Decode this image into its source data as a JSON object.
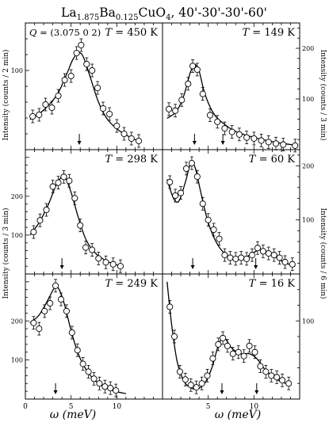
{
  "figure": {
    "title_parts": {
      "base": "La",
      "sub1": "1.875",
      "mid": "Ba",
      "sub2": "0.125",
      "tail": "CuO",
      "sub3": "4",
      "rest": ", 40'-30'-30'-60'"
    },
    "q_label": "Q",
    "q_value": " = (3.075 0 2)",
    "x_axis_label": "ω (meV)",
    "left_ylabel_top": "Intensity (counts / 2 min)",
    "left_ylabel_bottom": "Intensity (counts / 3 min)",
    "right_ylabel_top": "Intensity (counts / 3 min)",
    "right_ylabel_bottom": "Intensity (counts / 6 min)"
  },
  "chart_data": [
    {
      "type": "scatter",
      "panel": "left-1",
      "label_T": "T",
      "label_value": " = 450 K",
      "xlim": [
        0,
        15
      ],
      "ylim": [
        0,
        160
      ],
      "yticks": [
        0,
        100
      ],
      "xticks": [
        0,
        5,
        10
      ],
      "x": [
        0.8,
        1.5,
        2.2,
        2.9,
        3.6,
        4.3,
        5.0,
        5.6,
        6.1,
        6.7,
        7.3,
        7.9,
        8.5,
        9.2,
        10.0,
        10.8,
        11.6,
        12.4
      ],
      "y": [
        42,
        44,
        57,
        53,
        68,
        88,
        93,
        122,
        132,
        108,
        100,
        78,
        52,
        45,
        30,
        20,
        14,
        11
      ],
      "fit_x": [
        0.5,
        2,
        3.5,
        4.5,
        5.2,
        5.8,
        6.3,
        7,
        8,
        9,
        10.5,
        12.5
      ],
      "fit_y": [
        38,
        50,
        70,
        95,
        114,
        122,
        118,
        95,
        60,
        38,
        22,
        10
      ],
      "arrows": [
        5.9
      ]
    },
    {
      "type": "scatter",
      "panel": "right-1",
      "label_T": "T",
      "label_value": " = 149 K",
      "xlim": [
        0,
        15
      ],
      "ylim": [
        0,
        250
      ],
      "yticks": [
        0,
        100,
        200
      ],
      "xticks": [
        0,
        5,
        10
      ],
      "x": [
        0.7,
        1.4,
        2.1,
        2.8,
        3.3,
        3.8,
        4.4,
        5.2,
        6.0,
        6.8,
        7.6,
        8.4,
        9.2,
        10.0,
        10.8,
        11.6,
        12.4,
        13.2,
        14.5
      ],
      "y": [
        80,
        77,
        98,
        130,
        165,
        158,
        110,
        68,
        55,
        42,
        35,
        30,
        24,
        22,
        18,
        15,
        12,
        10,
        8
      ],
      "fit_x": [
        0.5,
        1.5,
        2.3,
        3.0,
        3.5,
        4.0,
        4.6,
        5.5,
        6.5,
        8,
        10,
        12.5,
        14.5
      ],
      "fit_y": [
        62,
        75,
        105,
        150,
        168,
        155,
        112,
        74,
        54,
        36,
        24,
        14,
        9
      ],
      "arrows": [
        3.5,
        6.6
      ]
    },
    {
      "type": "scatter",
      "panel": "left-2",
      "label_T": "T",
      "label_value": " = 298 K",
      "xlim": [
        0,
        15
      ],
      "ylim": [
        0,
        320
      ],
      "yticks": [
        0,
        100,
        200
      ],
      "xticks": [
        0,
        5,
        10
      ],
      "x": [
        0.9,
        1.6,
        2.3,
        3.0,
        3.6,
        4.2,
        4.8,
        5.4,
        6.0,
        6.6,
        7.3,
        8.0,
        8.8,
        9.6,
        10.4
      ],
      "y": [
        108,
        138,
        165,
        225,
        235,
        250,
        240,
        195,
        125,
        68,
        62,
        40,
        30,
        25,
        20
      ],
      "fit_x": [
        0.5,
        1.5,
        2.5,
        3.3,
        3.9,
        4.4,
        5.0,
        5.8,
        6.6,
        7.6,
        9,
        10.5
      ],
      "fit_y": [
        100,
        132,
        178,
        225,
        248,
        245,
        210,
        145,
        90,
        55,
        32,
        20
      ],
      "arrows": [
        4.0
      ]
    },
    {
      "type": "scatter",
      "panel": "right-2",
      "label_T": "T",
      "label_value": " = 60 K",
      "xlim": [
        0,
        15
      ],
      "ylim": [
        0,
        230
      ],
      "yticks": [
        0,
        100,
        200
      ],
      "xticks": [
        0,
        5,
        10
      ],
      "x": [
        0.8,
        1.4,
        2.0,
        2.6,
        3.2,
        3.8,
        4.4,
        5.0,
        5.6,
        6.2,
        6.8,
        7.4,
        8.0,
        8.6,
        9.2,
        9.8,
        10.4,
        11.0,
        11.6,
        12.2,
        12.8,
        13.4,
        14.2
      ],
      "y": [
        170,
        145,
        150,
        195,
        205,
        180,
        130,
        100,
        82,
        65,
        35,
        30,
        28,
        30,
        28,
        35,
        48,
        42,
        38,
        35,
        30,
        22,
        18
      ],
      "fit_x": [
        0.5,
        1.2,
        1.8,
        2.5,
        3.1,
        3.6,
        4.2,
        5.0,
        6.0,
        7.0,
        8.0,
        9.0,
        10.0,
        10.8,
        11.8,
        13,
        14.5
      ],
      "fit_y": [
        175,
        140,
        135,
        170,
        205,
        195,
        150,
        95,
        55,
        35,
        28,
        30,
        40,
        45,
        38,
        24,
        14
      ],
      "arrows": [
        3.3,
        10.2
      ]
    },
    {
      "type": "scatter",
      "panel": "left-3",
      "label_T": "T",
      "label_value": " = 249 K",
      "xlim": [
        0,
        15
      ],
      "ylim": [
        0,
        320
      ],
      "yticks": [
        0,
        100,
        200
      ],
      "xticks": [
        0,
        5,
        10
      ],
      "x": [
        0.9,
        1.5,
        2.1,
        2.7,
        3.3,
        3.9,
        4.5,
        5.1,
        5.7,
        6.3,
        6.9,
        7.5,
        8.1,
        8.7,
        9.3,
        9.9
      ],
      "y": [
        195,
        180,
        225,
        245,
        290,
        255,
        225,
        170,
        125,
        90,
        70,
        52,
        40,
        32,
        28,
        22
      ],
      "fit_x": [
        0.5,
        1.5,
        2.5,
        3.2,
        3.7,
        4.3,
        5.0,
        5.8,
        6.8,
        8,
        9.5,
        11
      ],
      "fit_y": [
        195,
        215,
        255,
        285,
        280,
        240,
        175,
        115,
        70,
        40,
        22,
        14
      ],
      "arrows": [
        3.3
      ]
    },
    {
      "type": "scatter",
      "panel": "right-3",
      "label_T": "T",
      "label_value": " = 16 K",
      "xlim": [
        0,
        15
      ],
      "ylim": [
        0,
        160
      ],
      "yticks": [
        0,
        100
      ],
      "xticks": [
        0,
        5,
        10
      ],
      "x": [
        0.8,
        1.3,
        1.9,
        2.5,
        3.1,
        3.7,
        4.3,
        4.9,
        5.5,
        6.1,
        6.6,
        7.1,
        7.7,
        8.3,
        8.9,
        9.5,
        10.1,
        10.7,
        11.3,
        11.9,
        12.5,
        13.1,
        13.8
      ],
      "y": [
        118,
        80,
        35,
        25,
        18,
        15,
        20,
        30,
        52,
        70,
        78,
        68,
        58,
        60,
        55,
        68,
        60,
        42,
        35,
        30,
        28,
        24,
        20
      ],
      "fit_x": [
        0.5,
        1.0,
        1.6,
        2.3,
        3.0,
        3.8,
        4.6,
        5.4,
        6.2,
        6.8,
        7.5,
        8.5,
        9.5,
        10.3,
        11.2,
        12.5,
        14.0
      ],
      "fit_y": [
        150,
        95,
        48,
        24,
        15,
        13,
        20,
        40,
        72,
        78,
        66,
        58,
        58,
        52,
        38,
        25,
        18
      ],
      "arrows": [
        6.5,
        10.3
      ]
    }
  ]
}
